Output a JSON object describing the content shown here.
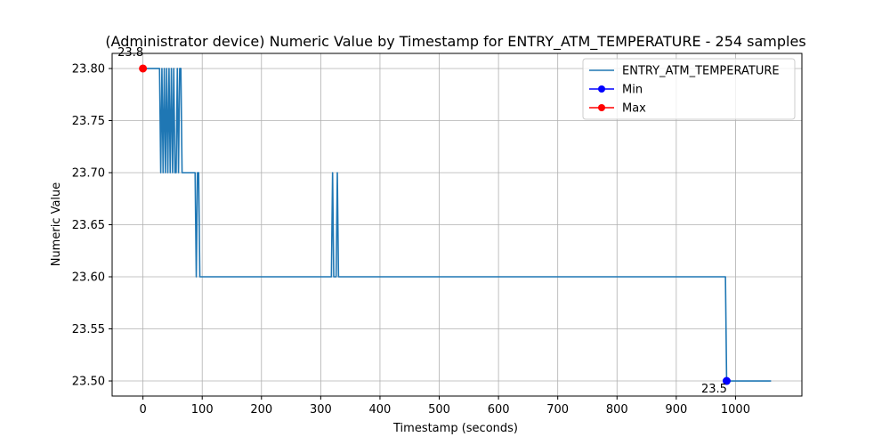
{
  "chart_data": {
    "type": "line",
    "title": "(Administrator device) Numeric Value by Timestamp for ENTRY_ATM_TEMPERATURE - 254 samples",
    "xlabel": "Timestamp (seconds)",
    "ylabel": "Numeric Value",
    "xlim": [
      -52,
      1112
    ],
    "ylim": [
      23.4855,
      23.8145
    ],
    "x_ticks": [
      0,
      100,
      200,
      300,
      400,
      500,
      600,
      700,
      800,
      900,
      1000
    ],
    "x_tick_labels": [
      "0",
      "100",
      "200",
      "300",
      "400",
      "500",
      "600",
      "700",
      "800",
      "900",
      "1000"
    ],
    "y_ticks": [
      23.5,
      23.55,
      23.6,
      23.65,
      23.7,
      23.75,
      23.8
    ],
    "y_tick_labels": [
      "23.50",
      "23.55",
      "23.60",
      "23.65",
      "23.70",
      "23.75",
      "23.80"
    ],
    "grid": true,
    "legend_position": "top-right",
    "series": [
      {
        "name": "ENTRY_ATM_TEMPERATURE",
        "color": "#1f77b4",
        "x": [
          0,
          26,
          28,
          30,
          32,
          34,
          36,
          38,
          40,
          42,
          44,
          46,
          48,
          50,
          52,
          54,
          56,
          58,
          60,
          62,
          64,
          66,
          68,
          88,
          90,
          92,
          94,
          96,
          98,
          318,
          320,
          322,
          326,
          328,
          330,
          983,
          985,
          1060
        ],
        "y": [
          23.8,
          23.8,
          23.8,
          23.7,
          23.8,
          23.7,
          23.8,
          23.7,
          23.8,
          23.7,
          23.8,
          23.7,
          23.8,
          23.7,
          23.8,
          23.7,
          23.7,
          23.8,
          23.7,
          23.8,
          23.8,
          23.7,
          23.7,
          23.7,
          23.6,
          23.7,
          23.7,
          23.6,
          23.6,
          23.6,
          23.7,
          23.6,
          23.6,
          23.7,
          23.6,
          23.6,
          23.5,
          23.5
        ]
      },
      {
        "name": "Min",
        "color": "#0000ff",
        "marker": true,
        "x": [
          985
        ],
        "y": [
          23.5
        ]
      },
      {
        "name": "Max",
        "color": "#ff0000",
        "marker": true,
        "x": [
          0
        ],
        "y": [
          23.8
        ]
      }
    ],
    "annotations": [
      {
        "text": "23.8",
        "x": 0,
        "y": 23.8,
        "placement": "above-left"
      },
      {
        "text": "23.5",
        "x": 985,
        "y": 23.5,
        "placement": "below-left"
      }
    ]
  }
}
